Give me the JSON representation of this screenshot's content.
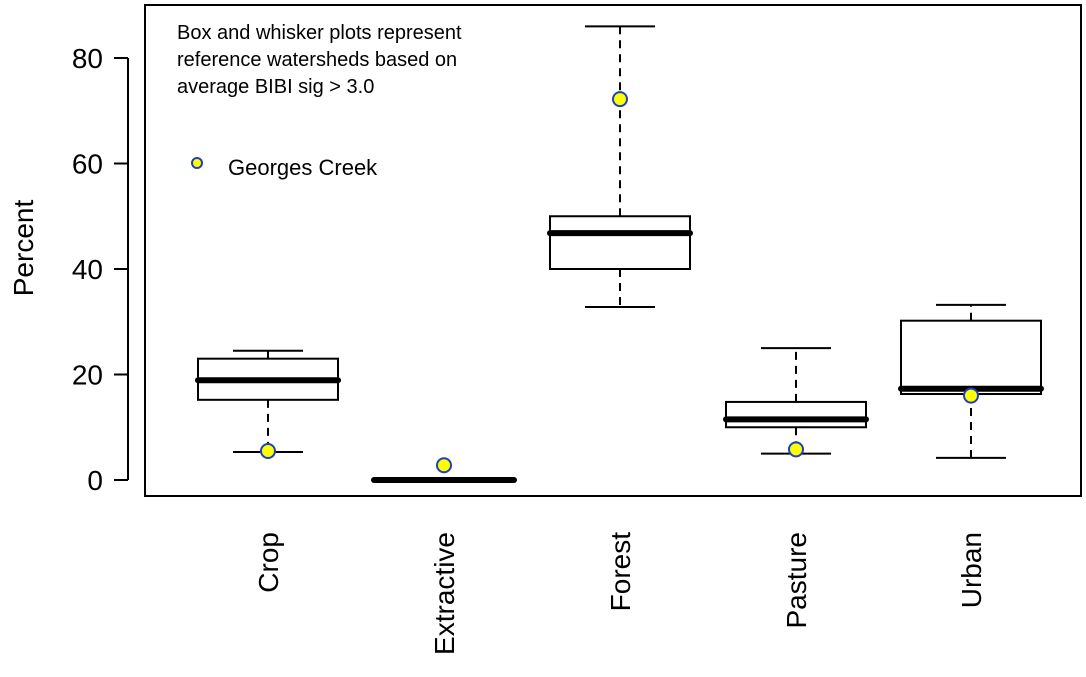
{
  "chart_data": {
    "type": "boxplot",
    "ylabel": "Percent",
    "xlabel": "",
    "ylim": [
      -4,
      90
    ],
    "yticks": [
      0,
      20,
      40,
      60,
      80
    ],
    "categories": [
      "Crop",
      "Extractive",
      "Forest",
      "Pasture",
      "Urban"
    ],
    "boxes": [
      {
        "category": "Crop",
        "whisker_low": 5.3,
        "q1": 15.2,
        "median": 18.9,
        "q3": 23.0,
        "whisker_high": 24.5
      },
      {
        "category": "Extractive",
        "whisker_low": 0.0,
        "q1": 0.0,
        "median": 0.0,
        "q3": 0.0,
        "whisker_high": 0.0
      },
      {
        "category": "Forest",
        "whisker_low": 32.8,
        "q1": 40.0,
        "median": 46.8,
        "q3": 50.0,
        "whisker_high": 86.0
      },
      {
        "category": "Pasture",
        "whisker_low": 5.0,
        "q1": 10.0,
        "median": 11.5,
        "q3": 14.8,
        "whisker_high": 25.0
      },
      {
        "category": "Urban",
        "whisker_low": 4.2,
        "q1": 16.3,
        "median": 17.3,
        "q3": 30.2,
        "whisker_high": 33.2
      }
    ],
    "points": {
      "name": "Georges Creek",
      "values": [
        5.5,
        2.8,
        72.2,
        5.8,
        16.0
      ]
    },
    "annotation": [
      "Box and whisker plots represent",
      "reference watersheds based on",
      "average BIBI sig > 3.0"
    ],
    "legend": {
      "label": "Georges Creek",
      "placement": "top-left"
    },
    "colors": {
      "point_fill": "#ffff00",
      "point_stroke": "#1f3fbf",
      "line": "#000000"
    },
    "grid": false
  }
}
